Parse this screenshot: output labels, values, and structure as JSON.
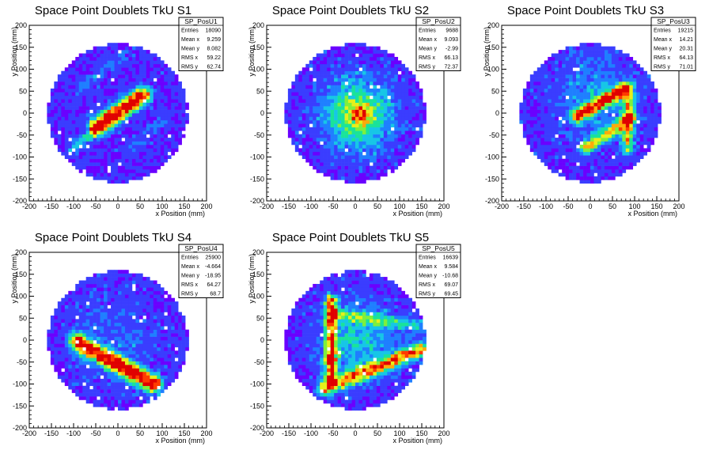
{
  "chart_data": [
    {
      "type": "heatmap",
      "title": "Space Point Doublets TkU S1",
      "xlabel": "x Position (mm)",
      "ylabel": "y Position (mm)",
      "xlim": [
        -200,
        200
      ],
      "ylim": [
        -200,
        200
      ],
      "xticks": [
        "-200",
        "-150",
        "-100",
        "-50",
        "0",
        "50",
        "100",
        "150",
        "200"
      ],
      "yticks": [
        "-200",
        "-150",
        "-100",
        "-50",
        "0",
        "50",
        "100",
        "150",
        "200"
      ],
      "statbox": {
        "name": "SP_PosU1",
        "rows": [
          [
            "Entries",
            "18090"
          ],
          [
            "Mean x",
            "9.259"
          ],
          [
            "Mean y",
            "8.082"
          ],
          [
            "RMS x",
            "59.22"
          ],
          [
            "RMS y",
            "62.74"
          ]
        ]
      },
      "features": [
        {
          "kind": "band",
          "from": [
            -45,
            -30
          ],
          "to": [
            55,
            40
          ],
          "width": 8,
          "intensity": 1.0
        },
        {
          "kind": "band",
          "from": [
            -100,
            -80
          ],
          "to": [
            -20,
            -15
          ],
          "width": 6,
          "intensity": 0.22
        },
        {
          "kind": "band",
          "from": [
            -80,
            60
          ],
          "to": [
            10,
            130
          ],
          "width": 6,
          "intensity": 0.12
        },
        {
          "kind": "band",
          "from": [
            30,
            -80
          ],
          "to": [
            110,
            -10
          ],
          "width": 6,
          "intensity": 0.1
        }
      ]
    },
    {
      "type": "heatmap",
      "title": "Space Point Doublets TkU S2",
      "xlabel": "x Position (mm)",
      "ylabel": "y Position (mm)",
      "xlim": [
        -200,
        200
      ],
      "ylim": [
        -200,
        200
      ],
      "xticks": [
        "-200",
        "-150",
        "-100",
        "-50",
        "0",
        "50",
        "100",
        "150",
        "200"
      ],
      "yticks": [
        "-200",
        "-150",
        "-100",
        "-50",
        "0",
        "50",
        "100",
        "150",
        "200"
      ],
      "statbox": {
        "name": "SP_PosU2",
        "rows": [
          [
            "Entries",
            "9688"
          ],
          [
            "Mean x",
            "9.093"
          ],
          [
            "Mean y",
            "-2.99"
          ],
          [
            "RMS x",
            "66.13"
          ],
          [
            "RMS y",
            "72.37"
          ]
        ]
      },
      "features": [
        {
          "kind": "blob",
          "center": [
            5,
            0
          ],
          "radius": 75,
          "intensity": 0.45
        },
        {
          "kind": "blob",
          "center": [
            10,
            0
          ],
          "radius": 25,
          "intensity": 0.35
        }
      ]
    },
    {
      "type": "heatmap",
      "title": "Space Point Doublets TkU S3",
      "xlabel": "x Position (mm)",
      "ylabel": "y Position (mm)",
      "xlim": [
        -200,
        200
      ],
      "ylim": [
        -200,
        200
      ],
      "xticks": [
        "-200",
        "-150",
        "-100",
        "-50",
        "0",
        "50",
        "100",
        "150",
        "200"
      ],
      "yticks": [
        "-200",
        "-150",
        "-100",
        "-50",
        "0",
        "50",
        "100",
        "150",
        "200"
      ],
      "statbox": {
        "name": "SP_PosU3",
        "rows": [
          [
            "Entries",
            "19215"
          ],
          [
            "Mean x",
            "14.21"
          ],
          [
            "Mean y",
            "20.31"
          ],
          [
            "RMS x",
            "64.13"
          ],
          [
            "RMS y",
            "71.01"
          ]
        ]
      },
      "features": [
        {
          "kind": "band",
          "from": [
            -30,
            -5
          ],
          "to": [
            70,
            50
          ],
          "width": 6,
          "intensity": 0.8
        },
        {
          "kind": "band",
          "from": [
            -10,
            -80
          ],
          "to": [
            90,
            -10
          ],
          "width": 6,
          "intensity": 0.55
        },
        {
          "kind": "band",
          "from": [
            85,
            -80
          ],
          "to": [
            85,
            60
          ],
          "width": 6,
          "intensity": 0.5
        },
        {
          "kind": "blob",
          "center": [
            10,
            40
          ],
          "radius": 90,
          "intensity": 0.18
        }
      ]
    },
    {
      "type": "heatmap",
      "title": "Space Point Doublets TkU S4",
      "xlabel": "x Position (mm)",
      "ylabel": "y Position (mm)",
      "xlim": [
        -200,
        200
      ],
      "ylim": [
        -200,
        200
      ],
      "xticks": [
        "-200",
        "-150",
        "-100",
        "-50",
        "0",
        "50",
        "100",
        "150",
        "200"
      ],
      "yticks": [
        "-200",
        "-150",
        "-100",
        "-50",
        "0",
        "50",
        "100",
        "150",
        "200"
      ],
      "statbox": {
        "name": "SP_PosU4",
        "rows": [
          [
            "Entries",
            "25900"
          ],
          [
            "Mean x",
            "-4.664"
          ],
          [
            "Mean y",
            "-18.95"
          ],
          [
            "RMS x",
            "64.27"
          ],
          [
            "RMS y",
            "68.7"
          ]
        ]
      },
      "features": [
        {
          "kind": "band",
          "from": [
            -90,
            -5
          ],
          "to": [
            80,
            -100
          ],
          "width": 8,
          "intensity": 0.95
        },
        {
          "kind": "blob",
          "center": [
            -10,
            0
          ],
          "radius": 100,
          "intensity": 0.1
        }
      ]
    },
    {
      "type": "heatmap",
      "title": "Space Point Doublets TkU S5",
      "xlabel": "x Position (mm)",
      "ylabel": "y Position (mm)",
      "xlim": [
        -200,
        200
      ],
      "ylim": [
        -200,
        200
      ],
      "xticks": [
        "-200",
        "-150",
        "-100",
        "-50",
        "0",
        "50",
        "100",
        "150",
        "200"
      ],
      "yticks": [
        "-200",
        "-150",
        "-100",
        "-50",
        "0",
        "50",
        "100",
        "150",
        "200"
      ],
      "statbox": {
        "name": "SP_PosU5",
        "rows": [
          [
            "Entries",
            "16639"
          ],
          [
            "Mean x",
            "9.584"
          ],
          [
            "Mean y",
            "-10.68"
          ],
          [
            "RMS x",
            "69.07"
          ],
          [
            "RMS y",
            "69.45"
          ]
        ]
      },
      "features": [
        {
          "kind": "band",
          "from": [
            -55,
            -90
          ],
          "to": [
            -55,
            90
          ],
          "width": 6,
          "intensity": 0.75
        },
        {
          "kind": "band",
          "from": [
            -70,
            -110
          ],
          "to": [
            150,
            -20
          ],
          "width": 7,
          "intensity": 0.7
        },
        {
          "kind": "band",
          "from": [
            -40,
            60
          ],
          "to": [
            150,
            30
          ],
          "width": 6,
          "intensity": 0.3
        },
        {
          "kind": "blob",
          "center": [
            10,
            0
          ],
          "radius": 80,
          "intensity": 0.25
        }
      ]
    }
  ],
  "colors": {
    "palette": [
      "#6a00ff",
      "#3a3dff",
      "#1f7fff",
      "#17c6e6",
      "#19e39a",
      "#7ef03c",
      "#e6f01a",
      "#ffaa0a",
      "#ff3b00",
      "#e00000"
    ]
  }
}
